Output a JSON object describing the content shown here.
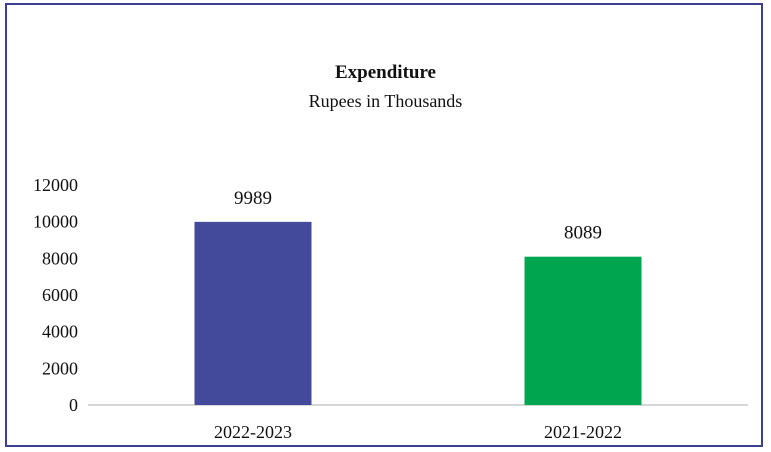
{
  "chart_data": {
    "type": "bar",
    "title": "Expenditure",
    "subtitle": "Rupees in Thousands",
    "categories": [
      "2022-2023",
      "2021-2022"
    ],
    "values": [
      9989,
      8089
    ],
    "data_labels": [
      "9989",
      "8089"
    ],
    "bar_colors": [
      "#434a9c",
      "#00a550"
    ],
    "xlabel": "",
    "ylabel": "",
    "ylim": [
      0,
      12000
    ],
    "yticks": [
      0,
      2000,
      4000,
      6000,
      8000,
      10000,
      12000
    ],
    "ytick_labels": [
      "0",
      "2000",
      "4000",
      "6000",
      "8000",
      "10000",
      "12000"
    ],
    "grid": false,
    "legend": "none"
  },
  "colors": {
    "frame_border": "#3f3f8f",
    "axis_line": "#c8c8c8"
  }
}
